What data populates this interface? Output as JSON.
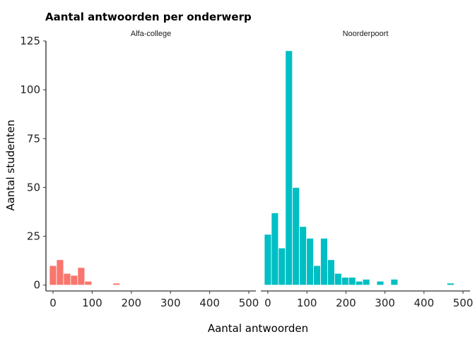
{
  "chart_data": {
    "type": "bar",
    "title": "Aantal antwoorden per onderwerp",
    "xlabel": "Aantal antwoorden",
    "ylabel": "Aantal studenten",
    "xlim": [
      -18,
      518
    ],
    "ylim": [
      -3,
      125
    ],
    "xticks": [
      0,
      100,
      200,
      300,
      400,
      500
    ],
    "yticks": [
      0,
      25,
      50,
      75,
      100,
      125
    ],
    "bin_width": 18,
    "grid": false,
    "legend": "none",
    "panels": [
      {
        "name": "Alfa-college",
        "color": "#F8766D",
        "bins": [
          {
            "x": 0,
            "count": 10
          },
          {
            "x": 18,
            "count": 13
          },
          {
            "x": 36,
            "count": 6
          },
          {
            "x": 54,
            "count": 5
          },
          {
            "x": 72,
            "count": 9
          },
          {
            "x": 90,
            "count": 2
          },
          {
            "x": 162,
            "count": 1
          }
        ]
      },
      {
        "name": "Noorderpoort",
        "color": "#00BFC4",
        "bins": [
          {
            "x": 0,
            "count": 26
          },
          {
            "x": 18,
            "count": 37
          },
          {
            "x": 36,
            "count": 19
          },
          {
            "x": 54,
            "count": 120
          },
          {
            "x": 72,
            "count": 50
          },
          {
            "x": 90,
            "count": 30
          },
          {
            "x": 108,
            "count": 24
          },
          {
            "x": 126,
            "count": 10
          },
          {
            "x": 144,
            "count": 24
          },
          {
            "x": 162,
            "count": 13
          },
          {
            "x": 180,
            "count": 6
          },
          {
            "x": 198,
            "count": 4
          },
          {
            "x": 216,
            "count": 4
          },
          {
            "x": 234,
            "count": 2
          },
          {
            "x": 252,
            "count": 3
          },
          {
            "x": 288,
            "count": 2
          },
          {
            "x": 324,
            "count": 3
          },
          {
            "x": 468,
            "count": 1
          }
        ]
      }
    ]
  }
}
